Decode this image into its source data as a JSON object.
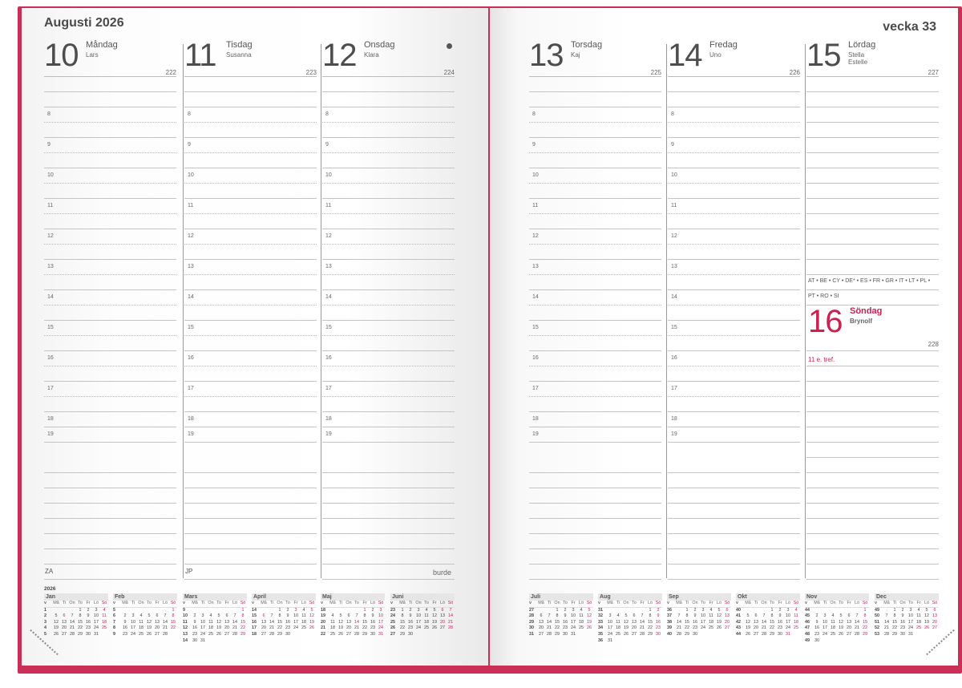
{
  "header": {
    "month_title": "Augusti 2026",
    "week_label": "vecka 33"
  },
  "hours": [
    "8",
    "9",
    "10",
    "11",
    "12",
    "13",
    "14",
    "15",
    "16",
    "17",
    "18",
    "19"
  ],
  "days": [
    {
      "num": "10",
      "weekday": "Måndag",
      "names": [
        "Lars"
      ],
      "day_of_year": "222",
      "footer": "ZA"
    },
    {
      "num": "11",
      "weekday": "Tisdag",
      "names": [
        "Susanna"
      ],
      "day_of_year": "223",
      "footer": "JP"
    },
    {
      "num": "12",
      "weekday": "Onsdag",
      "names": [
        "Klara"
      ],
      "day_of_year": "224",
      "footer": "",
      "moon_phase": "full-moon-icon"
    },
    {
      "num": "13",
      "weekday": "Torsdag",
      "names": [
        "Kaj"
      ],
      "day_of_year": "225",
      "footer": ""
    },
    {
      "num": "14",
      "weekday": "Fredag",
      "names": [
        "Uno"
      ],
      "day_of_year": "226",
      "footer": ""
    },
    {
      "num": "15",
      "weekday": "Lördag",
      "names": [
        "Stella",
        "Estelle"
      ],
      "day_of_year": "227",
      "footer": ""
    }
  ],
  "holiday_countries": [
    "AT • BE • CY • DE* • ES • FR • GR • IT • LT • PL •",
    "PT • RO • SI"
  ],
  "sunday": {
    "num": "16",
    "weekday": "Söndag",
    "names": [
      "Brynolf"
    ],
    "day_of_year": "228",
    "note": "11 e. tref."
  },
  "brand_logo": "burde",
  "colors": {
    "cover": "#c92f57",
    "holiday_red": "#c8234f",
    "text": "#555555"
  },
  "calendar": {
    "year": "2026",
    "weekday_headers": [
      "v",
      "Må",
      "Ti",
      "On",
      "To",
      "Fr",
      "Lö",
      "Sö"
    ],
    "months": [
      {
        "name": "Jan",
        "red": [
          "6"
        ],
        "rows": [
          [
            "1",
            "",
            "",
            "",
            "1",
            "2",
            "3",
            "4"
          ],
          [
            "2",
            "5",
            "6",
            "7",
            "8",
            "9",
            "10",
            "11"
          ],
          [
            "3",
            "12",
            "13",
            "14",
            "15",
            "16",
            "17",
            "18"
          ],
          [
            "4",
            "19",
            "20",
            "21",
            "22",
            "23",
            "24",
            "25"
          ],
          [
            "5",
            "26",
            "27",
            "28",
            "29",
            "30",
            "31",
            ""
          ]
        ]
      },
      {
        "name": "Feb",
        "red": [],
        "rows": [
          [
            "5",
            "",
            "",
            "",
            "",
            "",
            "",
            "1"
          ],
          [
            "6",
            "2",
            "3",
            "4",
            "5",
            "6",
            "7",
            "8"
          ],
          [
            "7",
            "9",
            "10",
            "11",
            "12",
            "13",
            "14",
            "15"
          ],
          [
            "8",
            "16",
            "17",
            "18",
            "19",
            "20",
            "21",
            "22"
          ],
          [
            "9",
            "23",
            "24",
            "25",
            "26",
            "27",
            "28",
            ""
          ]
        ]
      },
      {
        "name": "Mars",
        "red": [],
        "rows": [
          [
            "9",
            "",
            "",
            "",
            "",
            "",
            "",
            "1"
          ],
          [
            "10",
            "2",
            "3",
            "4",
            "5",
            "6",
            "7",
            "8"
          ],
          [
            "11",
            "9",
            "10",
            "11",
            "12",
            "13",
            "14",
            "15"
          ],
          [
            "12",
            "16",
            "17",
            "18",
            "19",
            "20",
            "21",
            "22"
          ],
          [
            "13",
            "23",
            "24",
            "25",
            "26",
            "27",
            "28",
            "29"
          ],
          [
            "14",
            "30",
            "31",
            "",
            "",
            "",
            "",
            ""
          ]
        ]
      },
      {
        "name": "April",
        "red": [
          "3",
          "6"
        ],
        "rows": [
          [
            "14",
            "",
            "",
            "1",
            "2",
            "3",
            "4",
            "5"
          ],
          [
            "15",
            "6",
            "7",
            "8",
            "9",
            "10",
            "11",
            "12"
          ],
          [
            "16",
            "13",
            "14",
            "15",
            "16",
            "17",
            "18",
            "19"
          ],
          [
            "17",
            "20",
            "21",
            "22",
            "23",
            "24",
            "25",
            "26"
          ],
          [
            "18",
            "27",
            "28",
            "29",
            "30",
            "",
            "",
            ""
          ]
        ]
      },
      {
        "name": "Maj",
        "red": [
          "1",
          "14"
        ],
        "rows": [
          [
            "18",
            "",
            "",
            "",
            "",
            "1",
            "2",
            "3"
          ],
          [
            "19",
            "4",
            "5",
            "6",
            "7",
            "8",
            "9",
            "10"
          ],
          [
            "20",
            "11",
            "12",
            "13",
            "14",
            "15",
            "16",
            "17"
          ],
          [
            "21",
            "18",
            "19",
            "20",
            "21",
            "22",
            "23",
            "24"
          ],
          [
            "22",
            "25",
            "26",
            "27",
            "28",
            "29",
            "30",
            "31"
          ]
        ]
      },
      {
        "name": "Juni",
        "red": [
          "6",
          "20"
        ],
        "rows": [
          [
            "23",
            "1",
            "2",
            "3",
            "4",
            "5",
            "6",
            "7"
          ],
          [
            "24",
            "8",
            "9",
            "10",
            "11",
            "12",
            "13",
            "14"
          ],
          [
            "25",
            "15",
            "16",
            "17",
            "18",
            "19",
            "20",
            "21"
          ],
          [
            "26",
            "22",
            "23",
            "24",
            "25",
            "26",
            "27",
            "28"
          ],
          [
            "27",
            "29",
            "30",
            "",
            "",
            "",
            "",
            ""
          ]
        ]
      },
      {
        "name": "Juli",
        "red": [],
        "rows": [
          [
            "27",
            "",
            "",
            "1",
            "2",
            "3",
            "4",
            "5"
          ],
          [
            "28",
            "6",
            "7",
            "8",
            "9",
            "10",
            "11",
            "12"
          ],
          [
            "29",
            "13",
            "14",
            "15",
            "16",
            "17",
            "18",
            "19"
          ],
          [
            "30",
            "20",
            "21",
            "22",
            "23",
            "24",
            "25",
            "26"
          ],
          [
            "31",
            "27",
            "28",
            "29",
            "30",
            "31",
            "",
            ""
          ]
        ]
      },
      {
        "name": "Aug",
        "red": [],
        "rows": [
          [
            "31",
            "",
            "",
            "",
            "",
            "",
            "1",
            "2"
          ],
          [
            "32",
            "3",
            "4",
            "5",
            "6",
            "7",
            "8",
            "9"
          ],
          [
            "33",
            "10",
            "11",
            "12",
            "13",
            "14",
            "15",
            "16"
          ],
          [
            "34",
            "17",
            "18",
            "19",
            "20",
            "21",
            "22",
            "23"
          ],
          [
            "35",
            "24",
            "25",
            "26",
            "27",
            "28",
            "29",
            "30"
          ],
          [
            "36",
            "31",
            "",
            "",
            "",
            "",
            "",
            ""
          ]
        ]
      },
      {
        "name": "Sep",
        "red": [],
        "rows": [
          [
            "36",
            "",
            "1",
            "2",
            "3",
            "4",
            "5",
            "6"
          ],
          [
            "37",
            "7",
            "8",
            "9",
            "10",
            "11",
            "12",
            "13"
          ],
          [
            "38",
            "14",
            "15",
            "16",
            "17",
            "18",
            "19",
            "20"
          ],
          [
            "39",
            "21",
            "22",
            "23",
            "24",
            "25",
            "26",
            "27"
          ],
          [
            "40",
            "28",
            "29",
            "30",
            "",
            "",
            "",
            ""
          ]
        ]
      },
      {
        "name": "Okt",
        "red": [
          "31"
        ],
        "rows": [
          [
            "40",
            "",
            "",
            "",
            "1",
            "2",
            "3",
            "4"
          ],
          [
            "41",
            "5",
            "6",
            "7",
            "8",
            "9",
            "10",
            "11"
          ],
          [
            "42",
            "12",
            "13",
            "14",
            "15",
            "16",
            "17",
            "18"
          ],
          [
            "43",
            "19",
            "20",
            "21",
            "22",
            "23",
            "24",
            "25"
          ],
          [
            "44",
            "26",
            "27",
            "28",
            "29",
            "30",
            "31",
            ""
          ]
        ]
      },
      {
        "name": "Nov",
        "red": [],
        "rows": [
          [
            "44",
            "",
            "",
            "",
            "",
            "",
            "",
            "1"
          ],
          [
            "45",
            "2",
            "3",
            "4",
            "5",
            "6",
            "7",
            "8"
          ],
          [
            "46",
            "9",
            "10",
            "11",
            "12",
            "13",
            "14",
            "15"
          ],
          [
            "47",
            "16",
            "17",
            "18",
            "19",
            "20",
            "21",
            "22"
          ],
          [
            "48",
            "23",
            "24",
            "25",
            "26",
            "27",
            "28",
            "29"
          ],
          [
            "49",
            "30",
            "",
            "",
            "",
            "",
            "",
            ""
          ]
        ]
      },
      {
        "name": "Dec",
        "red": [
          "25",
          "26"
        ],
        "rows": [
          [
            "49",
            "",
            "1",
            "2",
            "3",
            "4",
            "5",
            "6"
          ],
          [
            "50",
            "7",
            "8",
            "9",
            "10",
            "11",
            "12",
            "13"
          ],
          [
            "51",
            "14",
            "15",
            "16",
            "17",
            "18",
            "19",
            "20"
          ],
          [
            "52",
            "21",
            "22",
            "23",
            "24",
            "25",
            "26",
            "27"
          ],
          [
            "53",
            "28",
            "29",
            "30",
            "31",
            "",
            "",
            ""
          ]
        ]
      }
    ]
  }
}
